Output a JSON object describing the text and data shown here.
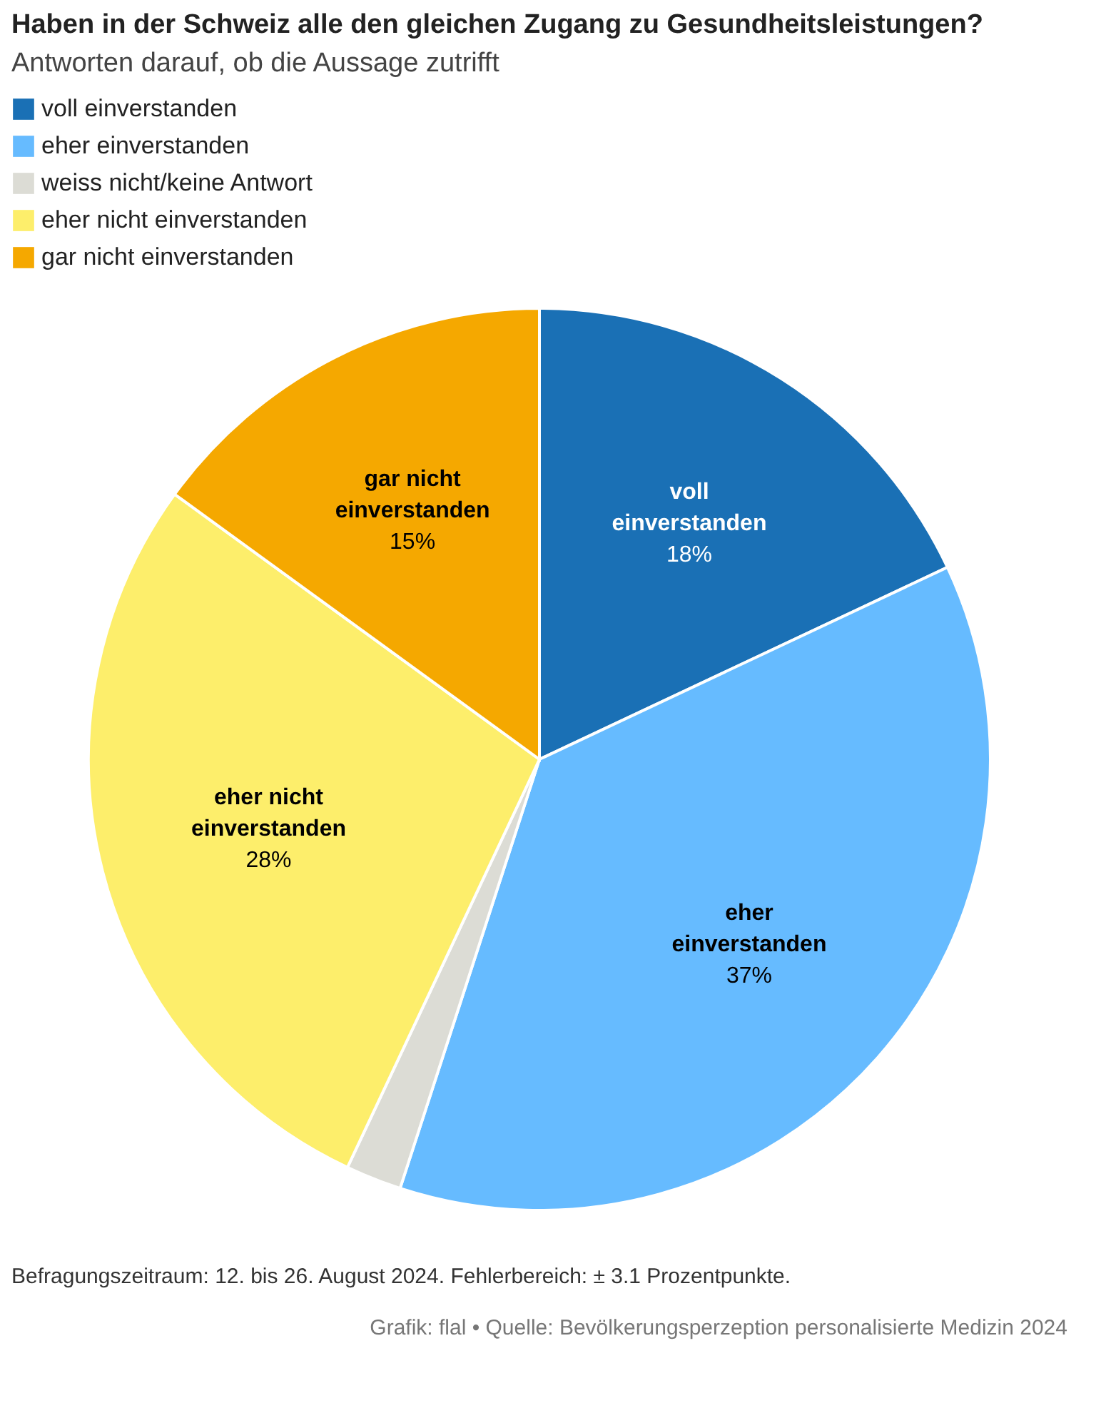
{
  "chart_data": {
    "type": "pie",
    "title": "Haben in der Schweiz alle den gleichen Zugang zu Gesundheitsleistungen?",
    "subtitle": "Antworten darauf, ob die Aussage zutrifft",
    "categories": [
      "voll einverstanden",
      "eher einverstanden",
      "weiss nicht/keine Antwort",
      "eher nicht einverstanden",
      "gar nicht einverstanden"
    ],
    "values": [
      18,
      37,
      2,
      28,
      15
    ],
    "colors": [
      "#1a70b5",
      "#66bbff",
      "#dcdcd5",
      "#fdee6b",
      "#f5a800"
    ],
    "value_labels": [
      "18%",
      "37%",
      null,
      "28%",
      "15%"
    ],
    "legend": "top left",
    "annotations": [
      "Befragungszeitraum: 12. bis 26. August 2024. Fehlerbereich: ± 3.1 Prozentpunkte.",
      "Grafik: flal • Quelle: Bevölkerungsperzeption personalisierte Medizin 2024"
    ]
  }
}
